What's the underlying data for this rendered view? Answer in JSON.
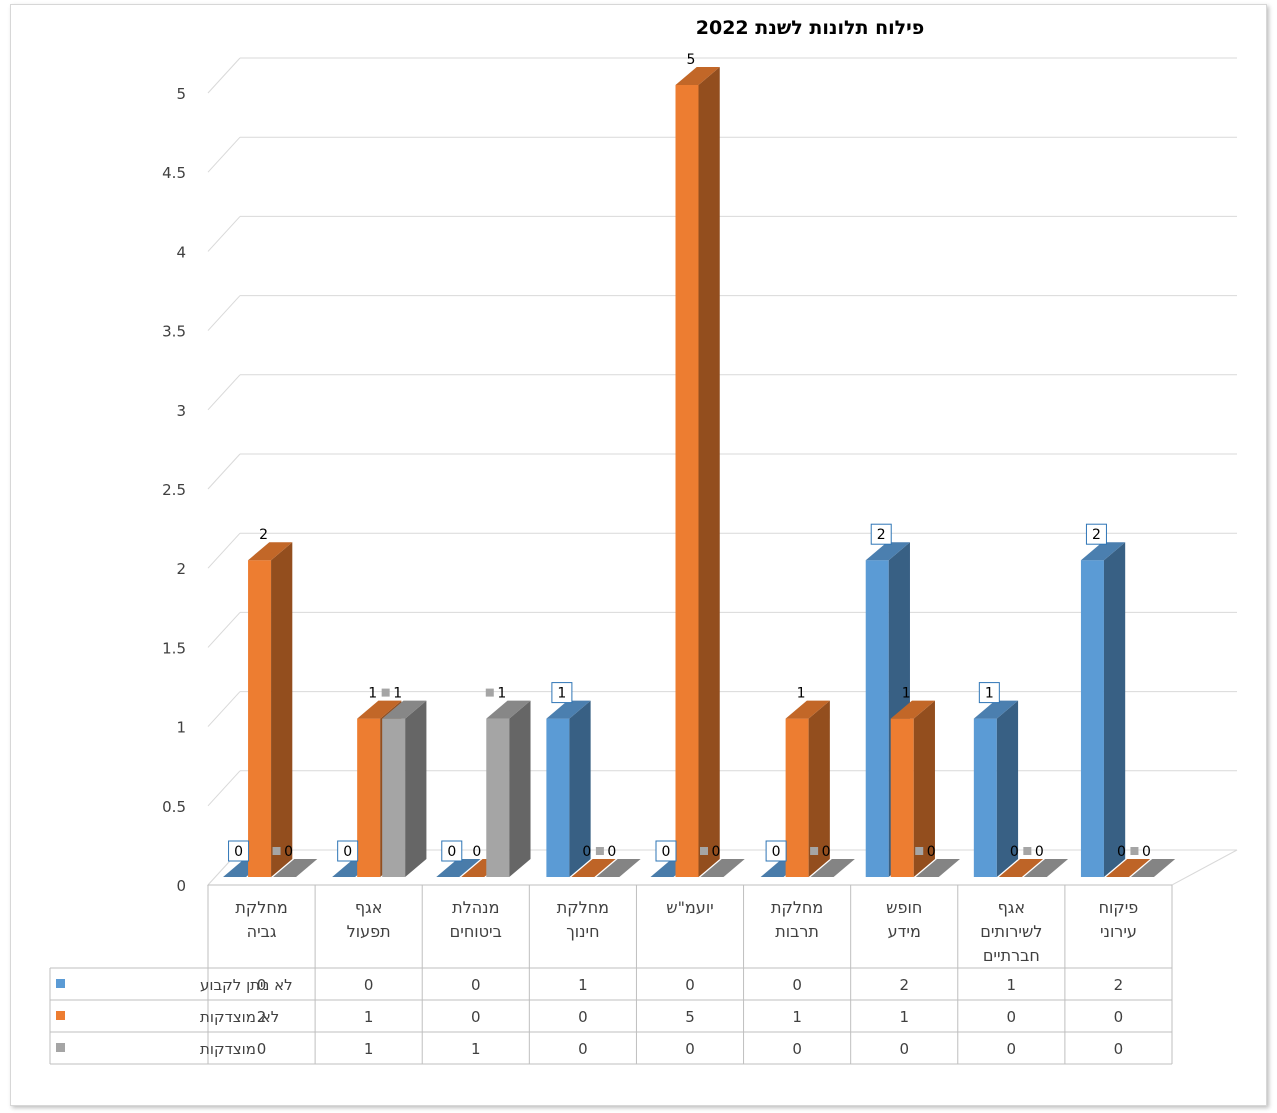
{
  "chart_data": {
    "type": "bar",
    "title": "פילוח תלונות לשנת 2022",
    "categories": [
      [
        "מחלקת",
        "גביה"
      ],
      [
        "אגף",
        "תפעול"
      ],
      [
        "מנהלת",
        "ביטוחים"
      ],
      [
        "מחלקת",
        "חינוך"
      ],
      [
        "יועמ\"ש"
      ],
      [
        "מחלקת",
        "תרבות"
      ],
      [
        "חופש",
        "מידע"
      ],
      [
        "אגף",
        "לשירותים",
        "חברתיים"
      ],
      [
        "פיקוח",
        "עירוני"
      ]
    ],
    "series": [
      {
        "name": "לא ניתן לקבוע",
        "color": "#5b9bd5",
        "values": [
          0,
          0,
          0,
          1,
          0,
          0,
          2,
          1,
          2
        ]
      },
      {
        "name": "לא מוצדקות",
        "color": "#ed7d31",
        "values": [
          2,
          1,
          0,
          0,
          5,
          1,
          1,
          0,
          0
        ]
      },
      {
        "name": "מוצדקות",
        "color": "#a5a5a5",
        "values": [
          0,
          1,
          1,
          0,
          0,
          0,
          0,
          0,
          0
        ]
      }
    ],
    "y_ticks": [
      "0",
      "0.5",
      "1",
      "1.5",
      "2",
      "2.5",
      "3",
      "3.5",
      "4",
      "4.5",
      "5"
    ],
    "ylim": [
      0,
      5
    ],
    "grid": true,
    "data_table": true,
    "legend": "data-table"
  }
}
